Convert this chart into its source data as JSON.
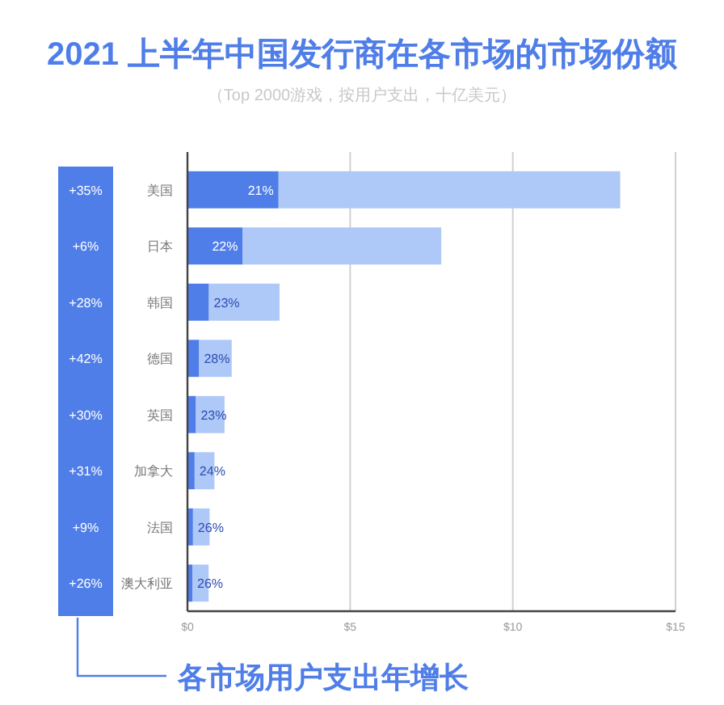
{
  "chart_data": {
    "type": "bar",
    "orientation": "horizontal",
    "stacked": true,
    "title": "2021 上半年中国发行商在各市场的市场份额",
    "subtitle": "（Top 2000游戏，按用户支出，十亿美元）",
    "categories": [
      "美国",
      "日本",
      "韩国",
      "德国",
      "英国",
      "加拿大",
      "法国",
      "澳大利亚"
    ],
    "series": [
      {
        "color": "#4f7ee8",
        "values": [
          2.8,
          1.7,
          0.66,
          0.36,
          0.26,
          0.22,
          0.17,
          0.15
        ]
      },
      {
        "color": "#aec8f8",
        "values": [
          10.5,
          6.1,
          2.17,
          1.0,
          0.88,
          0.61,
          0.51,
          0.5
        ]
      }
    ],
    "xlim": [
      0,
      15
    ],
    "xticks": [
      {
        "value": 0,
        "label": "$0"
      },
      {
        "value": 5,
        "label": "$5"
      },
      {
        "value": 10,
        "label": "$10"
      },
      {
        "value": 15,
        "label": "$15"
      }
    ],
    "grid": "x",
    "annotations": [
      {
        "text": "21%",
        "x": 2.8,
        "y": "美国"
      },
      {
        "text": "22%",
        "x": 1.7,
        "y": "日本"
      },
      {
        "text": "23%",
        "x": 0.66,
        "y": "韩国"
      },
      {
        "text": "28%",
        "x": 0.36,
        "y": "德国"
      },
      {
        "text": "23%",
        "x": 0.26,
        "y": "英国"
      },
      {
        "text": "24%",
        "x": 0.22,
        "y": "加拿大"
      },
      {
        "text": "26%",
        "x": 0.17,
        "y": "法国"
      },
      {
        "text": "26%",
        "x": 0.15,
        "y": "澳大利亚"
      },
      "+35%",
      "+6%",
      "+28%",
      "+42%",
      "+30%",
      "+31%",
      "+9%",
      "+26%",
      "各市场用户支出年增长"
    ]
  }
}
